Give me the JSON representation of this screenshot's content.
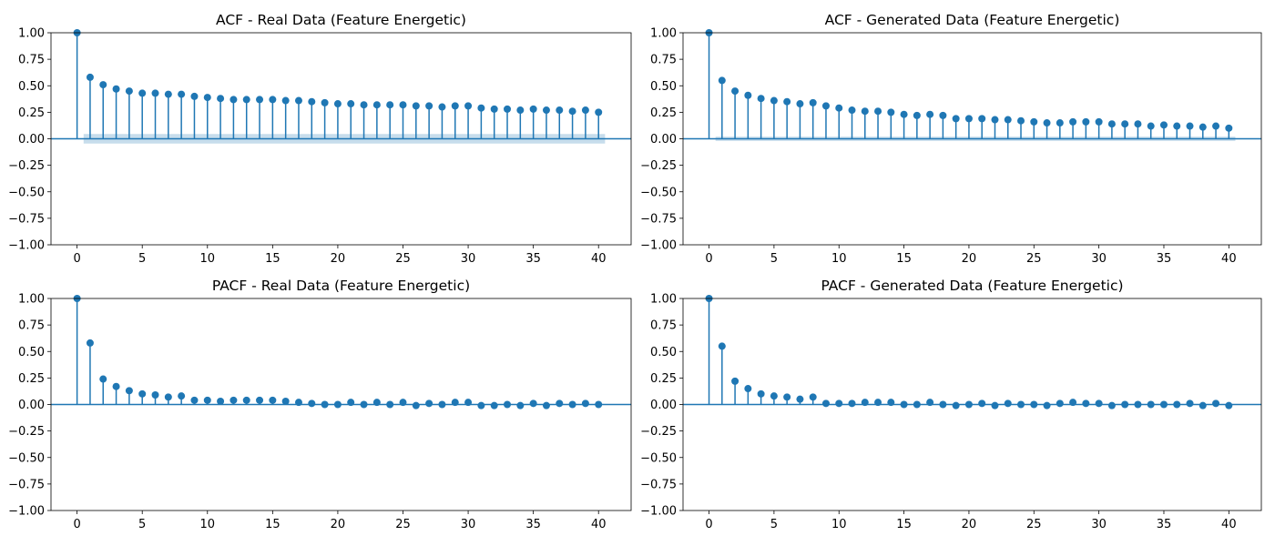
{
  "chart_data": [
    {
      "type": "stem",
      "title": "ACF - Real Data (Feature Energetic)",
      "xlabel": "",
      "ylabel": "",
      "xlim": [
        -2,
        42.5
      ],
      "ylim": [
        -1.0,
        1.0
      ],
      "xticks": [
        0,
        5,
        10,
        15,
        20,
        25,
        30,
        35,
        40
      ],
      "yticks": [
        1.0,
        0.75,
        0.5,
        0.25,
        0.0,
        -0.25,
        -0.5,
        -0.75,
        -1.0
      ],
      "confidence_band": 0.045,
      "x": [
        0,
        1,
        2,
        3,
        4,
        5,
        6,
        7,
        8,
        9,
        10,
        11,
        12,
        13,
        14,
        15,
        16,
        17,
        18,
        19,
        20,
        21,
        22,
        23,
        24,
        25,
        26,
        27,
        28,
        29,
        30,
        31,
        32,
        33,
        34,
        35,
        36,
        37,
        38,
        39,
        40
      ],
      "values": [
        1.0,
        0.58,
        0.51,
        0.47,
        0.45,
        0.43,
        0.43,
        0.42,
        0.42,
        0.4,
        0.39,
        0.38,
        0.37,
        0.37,
        0.37,
        0.37,
        0.36,
        0.36,
        0.35,
        0.34,
        0.33,
        0.33,
        0.32,
        0.32,
        0.32,
        0.32,
        0.31,
        0.31,
        0.3,
        0.31,
        0.31,
        0.29,
        0.28,
        0.28,
        0.27,
        0.28,
        0.27,
        0.27,
        0.26,
        0.27,
        0.25
      ],
      "grid": false,
      "color": "#1f77b4"
    },
    {
      "type": "stem",
      "title": "ACF - Generated Data (Feature Energetic)",
      "xlabel": "",
      "ylabel": "",
      "xlim": [
        -2,
        42.5
      ],
      "ylim": [
        -1.0,
        1.0
      ],
      "xticks": [
        0,
        5,
        10,
        15,
        20,
        25,
        30,
        35,
        40
      ],
      "yticks": [
        1.0,
        0.75,
        0.5,
        0.25,
        0.0,
        -0.25,
        -0.5,
        -0.75,
        -1.0
      ],
      "confidence_band": 0.02,
      "x": [
        0,
        1,
        2,
        3,
        4,
        5,
        6,
        7,
        8,
        9,
        10,
        11,
        12,
        13,
        14,
        15,
        16,
        17,
        18,
        19,
        20,
        21,
        22,
        23,
        24,
        25,
        26,
        27,
        28,
        29,
        30,
        31,
        32,
        33,
        34,
        35,
        36,
        37,
        38,
        39,
        40
      ],
      "values": [
        1.0,
        0.55,
        0.45,
        0.41,
        0.38,
        0.36,
        0.35,
        0.33,
        0.34,
        0.31,
        0.29,
        0.27,
        0.26,
        0.26,
        0.25,
        0.23,
        0.22,
        0.23,
        0.22,
        0.19,
        0.19,
        0.19,
        0.18,
        0.18,
        0.17,
        0.16,
        0.15,
        0.15,
        0.16,
        0.16,
        0.16,
        0.14,
        0.14,
        0.14,
        0.12,
        0.13,
        0.12,
        0.12,
        0.11,
        0.12,
        0.1
      ],
      "grid": false,
      "color": "#1f77b4"
    },
    {
      "type": "stem",
      "title": "PACF - Real Data (Feature Energetic)",
      "xlabel": "",
      "ylabel": "",
      "xlim": [
        -2,
        42.5
      ],
      "ylim": [
        -1.0,
        1.0
      ],
      "xticks": [
        0,
        5,
        10,
        15,
        20,
        25,
        30,
        35,
        40
      ],
      "yticks": [
        1.0,
        0.75,
        0.5,
        0.25,
        0.0,
        -0.25,
        -0.5,
        -0.75,
        -1.0
      ],
      "confidence_band": 0.0,
      "x": [
        0,
        1,
        2,
        3,
        4,
        5,
        6,
        7,
        8,
        9,
        10,
        11,
        12,
        13,
        14,
        15,
        16,
        17,
        18,
        19,
        20,
        21,
        22,
        23,
        24,
        25,
        26,
        27,
        28,
        29,
        30,
        31,
        32,
        33,
        34,
        35,
        36,
        37,
        38,
        39,
        40
      ],
      "values": [
        1.0,
        0.58,
        0.24,
        0.17,
        0.13,
        0.1,
        0.09,
        0.07,
        0.08,
        0.04,
        0.04,
        0.03,
        0.04,
        0.04,
        0.04,
        0.04,
        0.03,
        0.02,
        0.01,
        0.0,
        0.0,
        0.02,
        0.0,
        0.02,
        0.0,
        0.02,
        -0.01,
        0.01,
        0.0,
        0.02,
        0.02,
        -0.01,
        -0.01,
        0.0,
        -0.01,
        0.01,
        -0.01,
        0.01,
        0.0,
        0.01,
        0.0
      ],
      "grid": false,
      "color": "#1f77b4"
    },
    {
      "type": "stem",
      "title": "PACF - Generated Data (Feature Energetic)",
      "xlabel": "",
      "ylabel": "",
      "xlim": [
        -2,
        42.5
      ],
      "ylim": [
        -1.0,
        1.0
      ],
      "xticks": [
        0,
        5,
        10,
        15,
        20,
        25,
        30,
        35,
        40
      ],
      "yticks": [
        1.0,
        0.75,
        0.5,
        0.25,
        0.0,
        -0.25,
        -0.5,
        -0.75,
        -1.0
      ],
      "confidence_band": 0.0,
      "x": [
        0,
        1,
        2,
        3,
        4,
        5,
        6,
        7,
        8,
        9,
        10,
        11,
        12,
        13,
        14,
        15,
        16,
        17,
        18,
        19,
        20,
        21,
        22,
        23,
        24,
        25,
        26,
        27,
        28,
        29,
        30,
        31,
        32,
        33,
        34,
        35,
        36,
        37,
        38,
        39,
        40
      ],
      "values": [
        1.0,
        0.55,
        0.22,
        0.15,
        0.1,
        0.08,
        0.07,
        0.05,
        0.07,
        0.01,
        0.01,
        0.01,
        0.02,
        0.02,
        0.02,
        0.0,
        0.0,
        0.02,
        0.0,
        -0.01,
        0.0,
        0.01,
        -0.01,
        0.01,
        0.0,
        0.0,
        -0.01,
        0.01,
        0.02,
        0.01,
        0.01,
        -0.01,
        0.0,
        0.0,
        0.0,
        0.0,
        0.0,
        0.01,
        -0.01,
        0.01,
        -0.01
      ],
      "grid": false,
      "color": "#1f77b4"
    }
  ]
}
